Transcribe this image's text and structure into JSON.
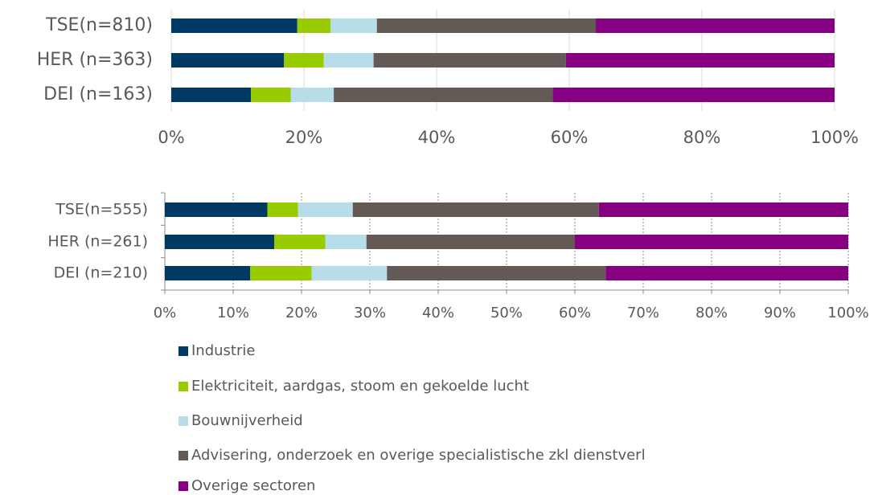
{
  "chart_data": [
    {
      "type": "bar",
      "orientation": "horizontal",
      "stacked": true,
      "grid": true,
      "categories": [
        "TSE(n=810)",
        "HER (n=363)",
        "DEI (n=163)"
      ],
      "series": [
        {
          "name": "Industrie",
          "color": "#003a63",
          "values": [
            19,
            17,
            12
          ]
        },
        {
          "name": "Elektriciteit, aardgas, stoom en gekoelde lucht",
          "color": "#99cc00",
          "values": [
            5,
            6,
            6
          ]
        },
        {
          "name": "Bouwnijverheid",
          "color": "#b7dde8",
          "values": [
            7,
            7.5,
            6.5
          ]
        },
        {
          "name": "Advisering, onderzoek en overige specialistische zkl dienstverl",
          "color": "#645a55",
          "values": [
            33,
            29,
            33
          ]
        },
        {
          "name": "Overige sectoren",
          "color": "#870082",
          "values": [
            36,
            40.5,
            42.5
          ]
        }
      ],
      "xlim": [
        0,
        100
      ],
      "xticks": [
        {
          "value": 0,
          "label": "0%"
        },
        {
          "value": 20,
          "label": "20%"
        },
        {
          "value": 40,
          "label": "40%"
        },
        {
          "value": 60,
          "label": "60%"
        },
        {
          "value": 80,
          "label": "80%"
        },
        {
          "value": 100,
          "label": "100%"
        }
      ]
    },
    {
      "type": "bar",
      "orientation": "horizontal",
      "stacked": true,
      "grid": true,
      "grid_style": "dotted",
      "categories": [
        "TSE(n=555)",
        "HER (n=261)",
        "DEI (n=210)"
      ],
      "series": [
        {
          "color": "#003a63",
          "values": [
            15,
            16,
            12.5
          ]
        },
        {
          "color": "#99cc00",
          "values": [
            4.5,
            7.5,
            9
          ]
        },
        {
          "color": "#b7dde8",
          "values": [
            8,
            6,
            11
          ]
        },
        {
          "color": "#645a55",
          "values": [
            36,
            30.5,
            32
          ]
        },
        {
          "color": "#870082",
          "values": [
            36.5,
            40,
            35.5
          ]
        }
      ],
      "xlim": [
        0,
        100
      ],
      "xticks": [
        {
          "value": 0,
          "label": "0%"
        },
        {
          "value": 10,
          "label": "10%"
        },
        {
          "value": 20,
          "label": "20%"
        },
        {
          "value": 30,
          "label": "30%"
        },
        {
          "value": 40,
          "label": "40%"
        },
        {
          "value": 50,
          "label": "50%"
        },
        {
          "value": 60,
          "label": "60%"
        },
        {
          "value": 70,
          "label": "70%"
        },
        {
          "value": 80,
          "label": "80%"
        },
        {
          "value": 90,
          "label": "90%"
        },
        {
          "value": 100,
          "label": "100%"
        }
      ]
    }
  ]
}
